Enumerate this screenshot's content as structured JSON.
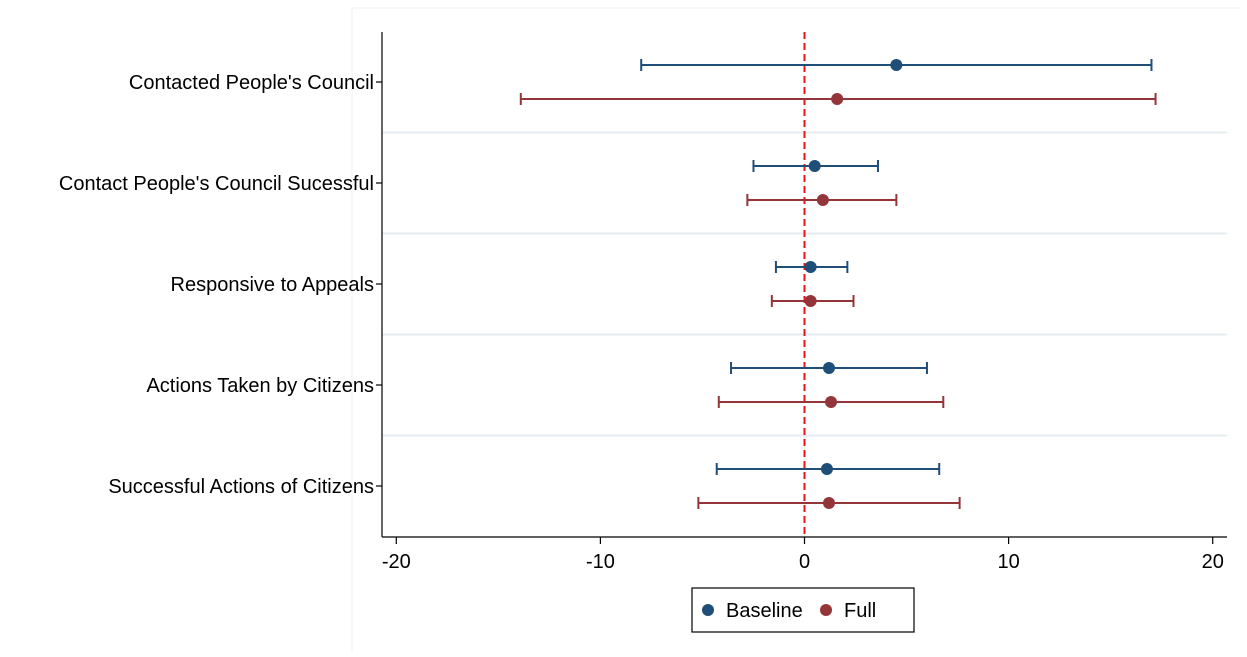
{
  "chart_data": {
    "type": "scatter",
    "subtype": "coefficient-plot-horizontal",
    "title": "",
    "xlabel": "",
    "ylabel": "",
    "xlim": [
      -20.7,
      20.7
    ],
    "xticks": [
      -20,
      -10,
      0,
      10,
      20
    ],
    "reference_line": {
      "x": 0,
      "style": "dashed",
      "color": "#e8141a"
    },
    "grid": "horizontal separators between categories",
    "legend_position": "bottom-center",
    "categories": [
      "Contacted People's Council",
      "Contact People's Council Sucessful",
      "Responsive to Appeals",
      "Actions Taken by Citizens",
      "Successful Actions of Citizens"
    ],
    "series": [
      {
        "name": "Baseline",
        "color": "#1f4e79",
        "points": [
          {
            "estimate": 4.5,
            "lower": -8.0,
            "upper": 17.0
          },
          {
            "estimate": 0.5,
            "lower": -2.5,
            "upper": 3.6
          },
          {
            "estimate": 0.3,
            "lower": -1.4,
            "upper": 2.1
          },
          {
            "estimate": 1.2,
            "lower": -3.6,
            "upper": 6.0
          },
          {
            "estimate": 1.1,
            "lower": -4.3,
            "upper": 6.6
          }
        ]
      },
      {
        "name": "Full",
        "color": "#94353a",
        "points": [
          {
            "estimate": 1.6,
            "lower": -13.9,
            "upper": 17.2
          },
          {
            "estimate": 0.9,
            "lower": -2.8,
            "upper": 4.5
          },
          {
            "estimate": 0.3,
            "lower": -1.6,
            "upper": 2.4
          },
          {
            "estimate": 1.3,
            "lower": -4.2,
            "upper": 6.8
          },
          {
            "estimate": 1.2,
            "lower": -5.2,
            "upper": 7.6
          }
        ]
      }
    ]
  }
}
